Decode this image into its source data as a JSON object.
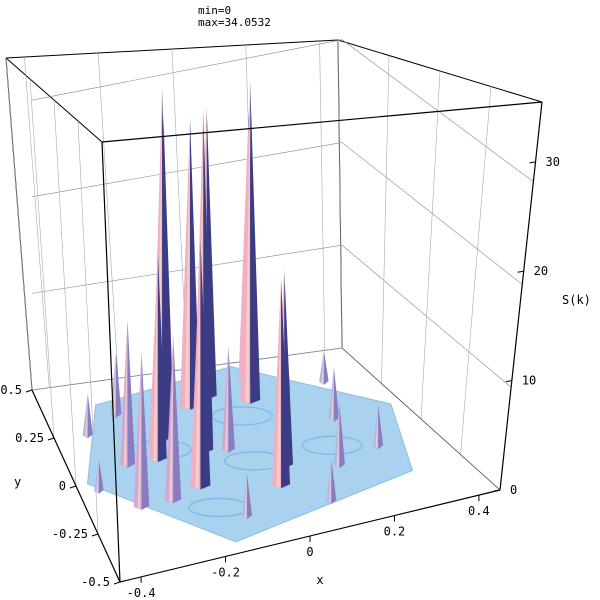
{
  "chart_data": {
    "type": "surface",
    "annotations": {
      "min": "min=0",
      "max": "max=34.0532"
    },
    "xlabel": "x",
    "ylabel": "y",
    "zlabel": "S(k)",
    "x_ticks": [
      "-0.4",
      "-0.2",
      "0",
      "0.2",
      "0.4"
    ],
    "y_ticks": [
      "-0.5",
      "-0.25",
      "0",
      "0.25",
      "0.5"
    ],
    "z_ticks": [
      "0",
      "10",
      "20",
      "30"
    ],
    "xlim": [
      -0.45,
      0.45
    ],
    "ylim": [
      -0.5,
      0.5
    ],
    "zlim": [
      0,
      34.0532
    ],
    "grid": true,
    "surface_colors": {
      "base": "#a8d2ee",
      "low": "#b6b4e2",
      "mid": "#d4a6d6",
      "high": "#f1aec4",
      "highlight": "#f7dcc4",
      "shadow": "#3c3c84"
    },
    "peaks": [
      {
        "x": -0.32,
        "y": -0.16,
        "z": 15
      },
      {
        "x": -0.3,
        "y": 0.06,
        "z": 14
      },
      {
        "x": -0.24,
        "y": -0.16,
        "z": 16
      },
      {
        "x": -0.22,
        "y": 0.06,
        "z": 20
      },
      {
        "x": -0.18,
        "y": 0.16,
        "z": 34
      },
      {
        "x": -0.16,
        "y": -0.12,
        "z": 24
      },
      {
        "x": -0.14,
        "y": 0.28,
        "z": 29
      },
      {
        "x": -0.1,
        "y": 0.06,
        "z": 33
      },
      {
        "x": -0.06,
        "y": 0.3,
        "z": 28
      },
      {
        "x": 0.0,
        "y": 0.34,
        "z": 28
      },
      {
        "x": 0.02,
        "y": -0.2,
        "z": 20
      },
      {
        "x": 0.06,
        "y": -0.1,
        "z": 19
      },
      {
        "x": 0.1,
        "y": 0.28,
        "z": 31
      },
      {
        "x": 0.14,
        "y": 0.4,
        "z": 26
      },
      {
        "x": -0.04,
        "y": 0.04,
        "z": 10
      },
      {
        "x": 0.2,
        "y": 0.3,
        "z": 10
      },
      {
        "x": -0.26,
        "y": 0.32,
        "z": 6
      },
      {
        "x": 0.18,
        "y": -0.16,
        "z": 6
      },
      {
        "x": -0.36,
        "y": 0.24,
        "z": 4
      },
      {
        "x": 0.26,
        "y": 0.1,
        "z": 5
      },
      {
        "x": -0.1,
        "y": -0.32,
        "z": 4
      },
      {
        "x": 0.1,
        "y": -0.34,
        "z": 4
      },
      {
        "x": 0.3,
        "y": -0.1,
        "z": 4
      },
      {
        "x": -0.4,
        "y": -0.04,
        "z": 3
      },
      {
        "x": 0.32,
        "y": 0.32,
        "z": 3
      }
    ]
  }
}
